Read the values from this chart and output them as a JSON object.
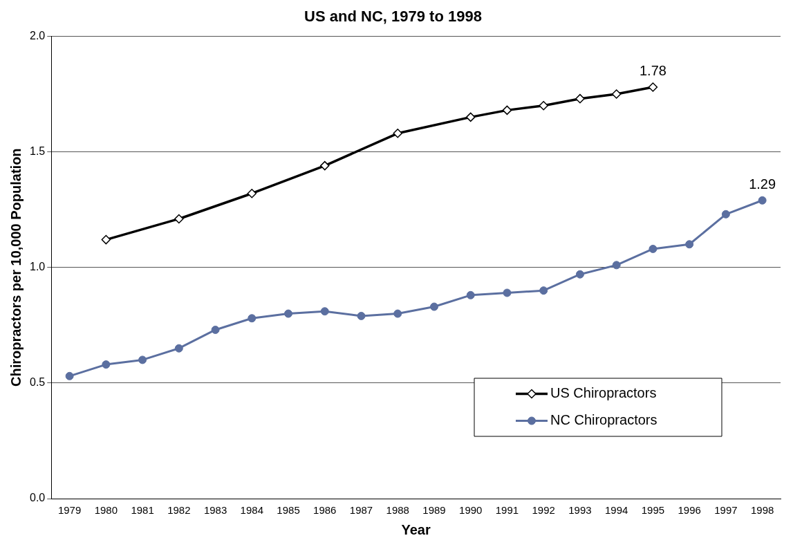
{
  "chart_data": {
    "type": "line",
    "title": "US and NC, 1979 to 1998",
    "xlabel": "Year",
    "ylabel": "Chiropractors per 10,000 Population",
    "categories": [
      "1979",
      "1980",
      "1981",
      "1982",
      "1983",
      "1984",
      "1985",
      "1986",
      "1987",
      "1988",
      "1989",
      "1990",
      "1991",
      "1992",
      "1993",
      "1994",
      "1995",
      "1996",
      "1997",
      "1998"
    ],
    "series": [
      {
        "name": "US Chiropractors",
        "color": "#000000",
        "marker": "diamond",
        "values": [
          null,
          1.12,
          null,
          1.21,
          null,
          1.32,
          null,
          1.44,
          null,
          1.58,
          null,
          1.65,
          1.68,
          1.7,
          1.73,
          1.75,
          1.78,
          null,
          null,
          null
        ],
        "value_labels": [
          null,
          null,
          null,
          null,
          null,
          null,
          null,
          null,
          null,
          null,
          null,
          null,
          null,
          null,
          null,
          null,
          "1.78",
          null,
          null,
          null
        ]
      },
      {
        "name": "NC Chiropractors",
        "color": "#5b6fa0",
        "marker": "circle",
        "values": [
          0.53,
          0.58,
          0.6,
          0.65,
          0.73,
          0.78,
          0.8,
          0.81,
          0.79,
          0.8,
          0.83,
          0.88,
          0.89,
          0.9,
          0.97,
          1.01,
          1.08,
          1.1,
          1.23,
          1.29
        ],
        "value_labels": [
          null,
          null,
          null,
          null,
          null,
          null,
          null,
          null,
          null,
          null,
          null,
          null,
          null,
          null,
          null,
          null,
          null,
          null,
          null,
          "1.29"
        ]
      }
    ],
    "ylim": [
      0,
      2
    ],
    "yticks": [
      {
        "value": 0,
        "label": "0.0"
      },
      {
        "value": 0.5,
        "label": "0.5"
      },
      {
        "value": 1,
        "label": "1.0"
      },
      {
        "value": 1.5,
        "label": "1.5"
      },
      {
        "value": 2,
        "label": "2.0"
      }
    ],
    "grid": "y",
    "legend": "bottom right"
  }
}
